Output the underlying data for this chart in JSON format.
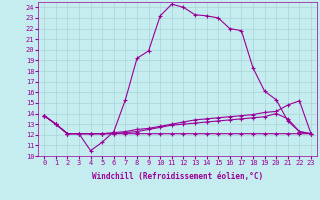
{
  "xlabel": "Windchill (Refroidissement éolien,°C)",
  "background_color": "#c5ecee",
  "grid_color": "#aad4d8",
  "line_color": "#990099",
  "xlim": [
    -0.5,
    23.5
  ],
  "ylim": [
    10,
    24.5
  ],
  "yticks": [
    10,
    11,
    12,
    13,
    14,
    15,
    16,
    17,
    18,
    19,
    20,
    21,
    22,
    23,
    24
  ],
  "xticks": [
    0,
    1,
    2,
    3,
    4,
    5,
    6,
    7,
    8,
    9,
    10,
    11,
    12,
    13,
    14,
    15,
    16,
    17,
    18,
    19,
    20,
    21,
    22,
    23
  ],
  "series": [
    {
      "x": [
        0,
        1,
        2,
        3,
        4,
        5,
        6,
        7,
        8,
        9,
        10,
        11,
        12,
        13,
        14,
        15,
        16,
        17,
        18,
        19,
        20,
        21,
        22,
        23
      ],
      "y": [
        13.8,
        13.0,
        12.1,
        12.1,
        10.5,
        11.3,
        12.3,
        15.3,
        19.2,
        19.9,
        23.2,
        24.3,
        24.0,
        23.3,
        23.2,
        23.0,
        22.0,
        21.8,
        18.3,
        16.1,
        15.3,
        13.3,
        12.3,
        12.1
      ],
      "marker": "+"
    },
    {
      "x": [
        0,
        1,
        2,
        3,
        4,
        5,
        6,
        7,
        8,
        9,
        10,
        11,
        12,
        13,
        14,
        15,
        16,
        17,
        18,
        19,
        20,
        21,
        22,
        23
      ],
      "y": [
        13.8,
        13.0,
        12.1,
        12.1,
        12.1,
        12.1,
        12.1,
        12.1,
        12.1,
        12.1,
        12.1,
        12.1,
        12.1,
        12.1,
        12.1,
        12.1,
        12.1,
        12.1,
        12.1,
        12.1,
        12.1,
        12.1,
        12.1,
        12.1
      ],
      "marker": "+"
    },
    {
      "x": [
        0,
        1,
        2,
        3,
        4,
        5,
        6,
        7,
        8,
        9,
        10,
        11,
        12,
        13,
        14,
        15,
        16,
        17,
        18,
        19,
        20,
        21,
        22,
        23
      ],
      "y": [
        13.8,
        13.0,
        12.1,
        12.1,
        12.1,
        12.1,
        12.2,
        12.3,
        12.5,
        12.6,
        12.8,
        13.0,
        13.2,
        13.4,
        13.5,
        13.6,
        13.7,
        13.8,
        13.9,
        14.1,
        14.2,
        14.8,
        15.2,
        12.1
      ],
      "marker": "+"
    },
    {
      "x": [
        0,
        1,
        2,
        3,
        4,
        5,
        6,
        7,
        8,
        9,
        10,
        11,
        12,
        13,
        14,
        15,
        16,
        17,
        18,
        19,
        20,
        21,
        22,
        23
      ],
      "y": [
        13.8,
        13.0,
        12.1,
        12.1,
        12.1,
        12.1,
        12.1,
        12.2,
        12.3,
        12.5,
        12.7,
        12.9,
        13.0,
        13.1,
        13.2,
        13.3,
        13.4,
        13.5,
        13.6,
        13.7,
        14.0,
        13.5,
        12.3,
        12.1
      ],
      "marker": "+"
    }
  ]
}
